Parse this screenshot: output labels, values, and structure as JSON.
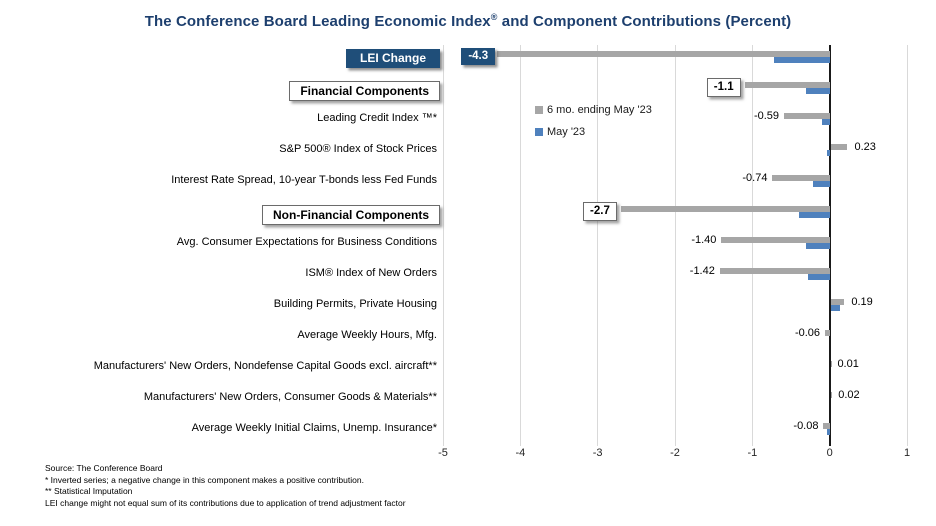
{
  "title": {
    "part1": "The Conference Board Leading Economic Index",
    "sup": "®",
    "part2": " and Component Contributions (Percent)"
  },
  "footnotes": [
    "Source: The Conference Board",
    "*  Inverted series; a negative change in this component makes a positive contribution.",
    "**  Statistical Imputation",
    "LEI change might not equal sum of  its contributions due to application of trend adjustment factor"
  ],
  "chart_data": {
    "type": "bar",
    "orientation": "horizontal",
    "xlim": [
      -5,
      1
    ],
    "xticks": [
      -5,
      -4,
      -3,
      -2,
      -1,
      0,
      1
    ],
    "grid": true,
    "legend_position": "inside-top",
    "series": [
      {
        "name": "6 mo. ending May '23",
        "color": "#a6a6a6",
        "key": "six_mo"
      },
      {
        "name": "May '23",
        "color": "#4f81bd",
        "key": "may"
      }
    ],
    "rows": [
      {
        "label": "LEI Change",
        "row_style": "lei",
        "six_mo": -4.3,
        "six_mo_label": "-4.3",
        "may": -0.72
      },
      {
        "label": "Financial Components",
        "row_style": "section",
        "six_mo": -1.1,
        "six_mo_label": "-1.1",
        "may": -0.3
      },
      {
        "label": "Leading Credit Index ™*",
        "row_style": "item",
        "six_mo": -0.59,
        "six_mo_label": "-0.59",
        "may": -0.1
      },
      {
        "label": "S&P 500® Index of Stock Prices",
        "row_style": "item",
        "six_mo": 0.23,
        "six_mo_label": "0.23",
        "may": -0.04
      },
      {
        "label": "Interest Rate Spread, 10-year T-bonds less Fed Funds",
        "row_style": "item",
        "six_mo": -0.74,
        "six_mo_label": "-0.74",
        "may": -0.22
      },
      {
        "label": "Non-Financial Components",
        "row_style": "section",
        "six_mo": -2.7,
        "six_mo_label": "-2.7",
        "may": -0.4
      },
      {
        "label": "Avg. Consumer Expectations for Business Conditions",
        "row_style": "item",
        "six_mo": -1.4,
        "six_mo_label": "-1.40",
        "may": -0.3
      },
      {
        "label": "ISM® Index of New Orders",
        "row_style": "item",
        "six_mo": -1.42,
        "six_mo_label": "-1.42",
        "may": -0.28
      },
      {
        "label": "Building Permits, Private Housing",
        "row_style": "item",
        "six_mo": 0.19,
        "six_mo_label": "0.19",
        "may": 0.13
      },
      {
        "label": "Average Weekly Hours, Mfg.",
        "row_style": "item",
        "six_mo": -0.06,
        "six_mo_label": "-0.06",
        "may": 0
      },
      {
        "label": "Manufacturers' New Orders, Nondefense Capital Goods excl. aircraft**",
        "row_style": "item",
        "six_mo": 0.01,
        "six_mo_label": "0.01",
        "may": 0
      },
      {
        "label": "Manufacturers' New Orders, Consumer Goods & Materials**",
        "row_style": "item",
        "six_mo": 0.02,
        "six_mo_label": "0.02",
        "may": 0
      },
      {
        "label": "Average Weekly Initial Claims, Unemp. Insurance*",
        "row_style": "item",
        "six_mo": -0.08,
        "six_mo_label": "-0.08",
        "may": -0.03
      }
    ]
  },
  "colors": {
    "navy": "#1f4e79",
    "title": "#1d3f6e",
    "bar_gray": "#a6a6a6",
    "bar_blue": "#4f81bd",
    "gridline": "#d9d9d9",
    "axis": "#1a1a1a"
  }
}
